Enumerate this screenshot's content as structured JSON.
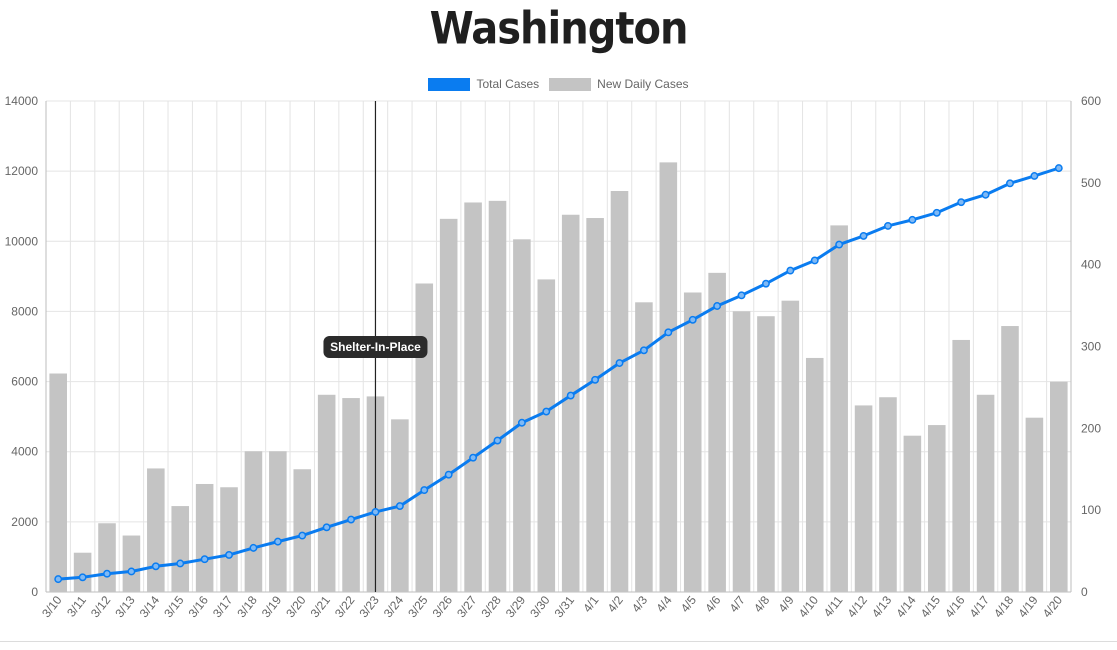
{
  "chart_data": {
    "type": "bar",
    "title": "Washington",
    "categories": [
      "3/10",
      "3/11",
      "3/12",
      "3/13",
      "3/14",
      "3/15",
      "3/16",
      "3/17",
      "3/18",
      "3/19",
      "3/20",
      "3/21",
      "3/22",
      "3/23",
      "3/24",
      "3/25",
      "3/26",
      "3/27",
      "3/28",
      "3/29",
      "3/30",
      "3/31",
      "4/1",
      "4/2",
      "4/3",
      "4/4",
      "4/5",
      "4/6",
      "4/7",
      "4/8",
      "4/9",
      "4/10",
      "4/11",
      "4/12",
      "4/13",
      "4/14",
      "4/15",
      "4/16",
      "4/17",
      "4/18",
      "4/19",
      "4/20"
    ],
    "series": [
      {
        "name": "Total Cases",
        "type": "line",
        "axis": "left",
        "color": "#0a7cf0",
        "values": [
          367,
          419,
          521,
          585,
          733,
          813,
          935,
          1057,
          1258,
          1436,
          1608,
          1844,
          2066,
          2282,
          2450,
          2906,
          3346,
          3830,
          4319,
          4826,
          5145,
          5601,
          6051,
          6529,
          6891,
          7404,
          7762,
          8155,
          8459,
          8791,
          9164,
          9453,
          9906,
          10153,
          10439,
          10611,
          10813,
          11115,
          11327,
          11652,
          11862,
          12086
        ]
      },
      {
        "name": "New Daily Cases",
        "type": "bar",
        "axis": "right",
        "color": "#c4c4c4",
        "values": [
          267,
          48,
          84,
          69,
          151,
          105,
          132,
          128,
          172,
          172,
          150,
          241,
          237,
          239,
          211,
          377,
          456,
          476,
          478,
          431,
          382,
          461,
          457,
          490,
          354,
          525,
          366,
          390,
          343,
          337,
          356,
          286,
          448,
          228,
          238,
          191,
          204,
          308,
          241,
          325,
          213,
          257
        ]
      }
    ],
    "y_left": {
      "min": 0,
      "max": 14000,
      "ticks": [
        0,
        2000,
        4000,
        6000,
        8000,
        10000,
        12000,
        14000
      ]
    },
    "y_right": {
      "min": 0,
      "max": 600,
      "ticks": [
        0,
        100,
        200,
        300,
        400,
        500,
        600
      ]
    },
    "grid": true,
    "legend": "top-center",
    "annotation": {
      "label": "Shelter-In-Place",
      "at": "3/23"
    }
  }
}
